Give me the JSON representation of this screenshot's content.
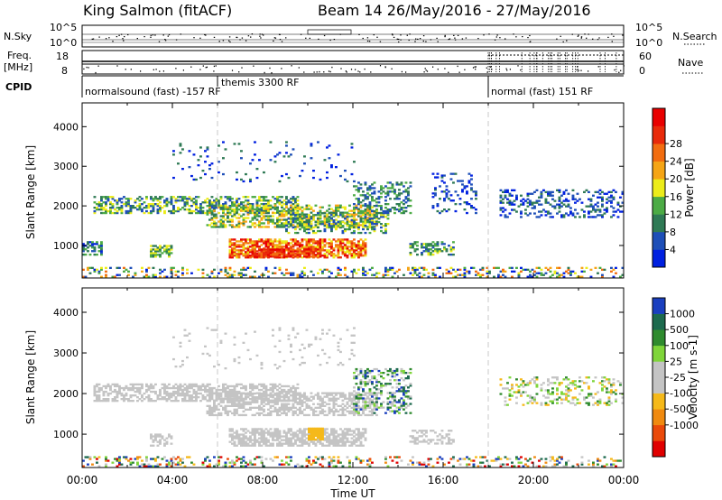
{
  "header": {
    "station": "King Salmon (fitACF)",
    "beam_date": "Beam 14 26/May/2016 - 27/May/2016"
  },
  "side_labels": {
    "nsky": "N.Sky",
    "freq_line1": "Freq.",
    "freq_line2": "[MHz]",
    "cpid": "CPID",
    "nsearch": "N.Search",
    "nave": "Nave"
  },
  "strip_axes": {
    "nsky_ticks_left": [
      "10^5",
      "10^0"
    ],
    "nsearch_ticks_right": [
      "10^5",
      "10^0"
    ],
    "freq_ticks_left": [
      "18",
      "8"
    ],
    "nave_ticks_right": [
      "60",
      "0"
    ]
  },
  "cpid_labels": [
    {
      "text": "normalsound (fast) -157 RF",
      "hour": 0.1
    },
    {
      "text": "themis 3300 RF",
      "hour": 6.1
    },
    {
      "text": "normal (fast) 151 RF",
      "hour": 18.1
    }
  ],
  "colors": {
    "power_scale": [
      "#0020e0",
      "#1e4fb8",
      "#2f7a55",
      "#4cab45",
      "#ecec1a",
      "#f5a516",
      "#f26d10",
      "#e82a0a",
      "#e80000"
    ],
    "velocity_scale": [
      "#1a3fbf",
      "#1d6a4e",
      "#2f8b2e",
      "#7fd53a",
      "#c4c4c4",
      "#c4c4c4",
      "#f5b91a",
      "#f08a10",
      "#ea4a0a",
      "#e00000"
    ],
    "grey": "#c4c4c4"
  },
  "chart_data": [
    {
      "type": "heatmap",
      "quantity": "power",
      "ylabel": "Slant Range [km]",
      "yticks": [
        1000,
        2000,
        3000,
        4000
      ],
      "ylim": [
        180,
        4600
      ],
      "xlim": [
        0,
        24
      ],
      "colorbar_label": "Power [dB]",
      "colorbar_ticks": [
        "4",
        "8",
        "12",
        "16",
        "20",
        "24",
        "28"
      ],
      "features": [
        {
          "h0": 0.5,
          "h1": 9.5,
          "r0": 1800,
          "r1": 2250,
          "dens": 0.55,
          "lvl": [
            1,
            4
          ]
        },
        {
          "h0": 5.5,
          "h1": 13.0,
          "r0": 1450,
          "r1": 2000,
          "dens": 0.55,
          "lvl": [
            2,
            5
          ]
        },
        {
          "h0": 9.0,
          "h1": 13.5,
          "r0": 1300,
          "r1": 1800,
          "dens": 0.4,
          "lvl": [
            1,
            4
          ]
        },
        {
          "h0": 6.5,
          "h1": 12.5,
          "r0": 680,
          "r1": 1150,
          "dens": 0.7,
          "lvl": [
            4,
            8
          ]
        },
        {
          "h0": 7.5,
          "h1": 10.5,
          "r0": 700,
          "r1": 900,
          "dens": 0.8,
          "lvl": [
            6,
            8
          ]
        },
        {
          "h0": 3.0,
          "h1": 4.0,
          "r0": 700,
          "r1": 1000,
          "dens": 0.7,
          "lvl": [
            2,
            4
          ]
        },
        {
          "h0": 0.0,
          "h1": 0.8,
          "r0": 750,
          "r1": 1100,
          "dens": 0.6,
          "lvl": [
            0,
            3
          ]
        },
        {
          "h0": 12.0,
          "h1": 14.5,
          "r0": 1800,
          "r1": 2600,
          "dens": 0.35,
          "lvl": [
            1,
            3
          ]
        },
        {
          "h0": 14.5,
          "h1": 16.5,
          "r0": 750,
          "r1": 1100,
          "dens": 0.45,
          "lvl": [
            1,
            4
          ]
        },
        {
          "h0": 15.5,
          "h1": 17.5,
          "r0": 1800,
          "r1": 2800,
          "dens": 0.2,
          "lvl": [
            0,
            2
          ]
        },
        {
          "h0": 18.5,
          "h1": 24.0,
          "r0": 1700,
          "r1": 2400,
          "dens": 0.3,
          "lvl": [
            0,
            2
          ]
        },
        {
          "h0": 4.0,
          "h1": 12.0,
          "r0": 2600,
          "r1": 3600,
          "dens": 0.06,
          "lvl": [
            0,
            2
          ]
        },
        {
          "h0": 0.0,
          "h1": 24.0,
          "r0": 190,
          "r1": 420,
          "dens": 0.25,
          "lvl": [
            0,
            6
          ]
        }
      ]
    },
    {
      "type": "heatmap",
      "quantity": "velocity",
      "ylabel": "Slant Range [km]",
      "yticks": [
        1000,
        2000,
        3000,
        4000
      ],
      "ylim": [
        180,
        4600
      ],
      "xlim": [
        0,
        24
      ],
      "xticks": [
        "00:00",
        "04:00",
        "08:00",
        "12:00",
        "16:00",
        "20:00",
        "00:00"
      ],
      "xlabel": "Time UT",
      "colorbar_label": "Velocity [m s-1]",
      "colorbar_ticks": [
        "1000",
        "500",
        "100",
        "25",
        "-25",
        "-100",
        "-500",
        "-1000"
      ],
      "features": [
        {
          "h0": 0.5,
          "h1": 9.5,
          "r0": 1800,
          "r1": 2250,
          "dens": 0.55,
          "lvl": [
            4,
            5
          ]
        },
        {
          "h0": 5.5,
          "h1": 13.0,
          "r0": 1450,
          "r1": 2000,
          "dens": 0.55,
          "lvl": [
            4,
            5
          ]
        },
        {
          "h0": 6.5,
          "h1": 12.5,
          "r0": 700,
          "r1": 1150,
          "dens": 0.7,
          "lvl": [
            4,
            5
          ]
        },
        {
          "h0": 10.0,
          "h1": 10.6,
          "r0": 850,
          "r1": 1150,
          "dens": 0.9,
          "lvl": [
            6,
            6
          ]
        },
        {
          "h0": 3.0,
          "h1": 4.0,
          "r0": 700,
          "r1": 1000,
          "dens": 0.6,
          "lvl": [
            4,
            5
          ]
        },
        {
          "h0": 12.0,
          "h1": 14.5,
          "r0": 1500,
          "r1": 2600,
          "dens": 0.35,
          "lvl": [
            0,
            5
          ]
        },
        {
          "h0": 14.5,
          "h1": 16.5,
          "r0": 750,
          "r1": 1100,
          "dens": 0.4,
          "lvl": [
            4,
            5
          ]
        },
        {
          "h0": 18.5,
          "h1": 24.0,
          "r0": 1700,
          "r1": 2400,
          "dens": 0.25,
          "lvl": [
            2,
            6
          ]
        },
        {
          "h0": 4.0,
          "h1": 12.0,
          "r0": 2600,
          "r1": 3600,
          "dens": 0.06,
          "lvl": [
            4,
            5
          ]
        },
        {
          "h0": 0.0,
          "h1": 24.0,
          "r0": 190,
          "r1": 420,
          "dens": 0.25,
          "lvl": [
            0,
            9
          ]
        }
      ]
    }
  ]
}
